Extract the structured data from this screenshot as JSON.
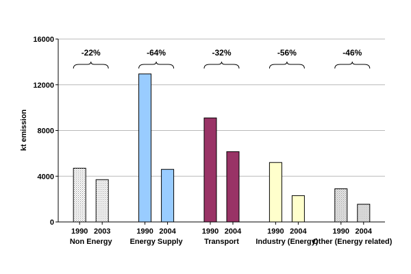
{
  "chart_data": {
    "type": "bar",
    "title": "",
    "xlabel": "",
    "ylabel": "kt emission",
    "ylim": [
      0,
      16000
    ],
    "yticks": [
      "0",
      "4000",
      "8000",
      "12000",
      "16000"
    ],
    "grid": true,
    "legend": "none",
    "groups": [
      {
        "name": "Non Energy",
        "change": "-22%",
        "bars": [
          {
            "year": "1990",
            "value": 4700,
            "fill": "dots",
            "color": "#ffffff"
          },
          {
            "year": "2003",
            "value": 3700,
            "fill": "dots",
            "color": "#ffffff"
          }
        ]
      },
      {
        "name": "Energy Supply",
        "change": "-64%",
        "bars": [
          {
            "year": "1990",
            "value": 12950,
            "fill": "solid",
            "color": "#99ccff"
          },
          {
            "year": "2004",
            "value": 4600,
            "fill": "solid",
            "color": "#99ccff"
          }
        ]
      },
      {
        "name": "Transport",
        "change": "-32%",
        "bars": [
          {
            "year": "1990",
            "value": 9100,
            "fill": "solid",
            "color": "#993366"
          },
          {
            "year": "2004",
            "value": 6150,
            "fill": "solid",
            "color": "#993366"
          }
        ]
      },
      {
        "name": "Industry (Energy)",
        "change": "-56%",
        "bars": [
          {
            "year": "1990",
            "value": 5200,
            "fill": "solid",
            "color": "#ffffcc"
          },
          {
            "year": "2004",
            "value": 2300,
            "fill": "solid",
            "color": "#ffffcc"
          }
        ]
      },
      {
        "name": "Other (Energy related)",
        "change": "-46%",
        "bars": [
          {
            "year": "1990",
            "value": 2900,
            "fill": "dots",
            "color": "#e6e6e6"
          },
          {
            "year": "2004",
            "value": 1550,
            "fill": "dots",
            "color": "#e6e6e6"
          }
        ]
      }
    ]
  }
}
